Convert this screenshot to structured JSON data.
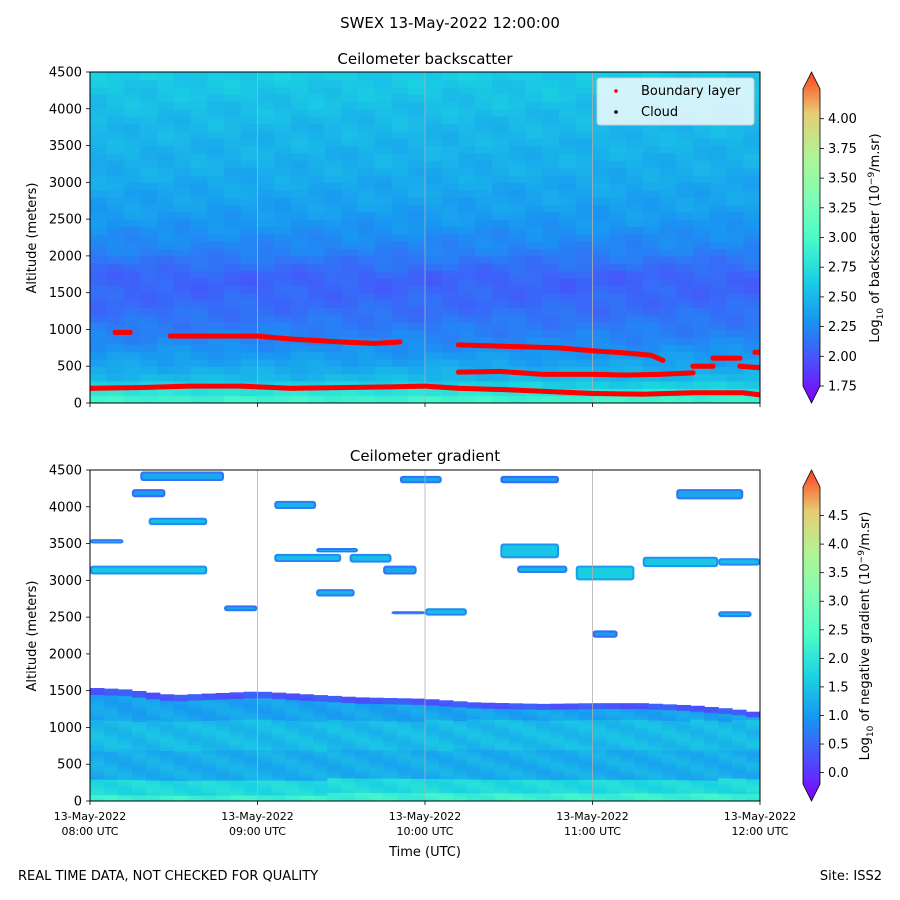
{
  "figure": {
    "suptitle": "SWEX 13-May-2022 12:00:00",
    "footer_left": "REAL TIME DATA, NOT CHECKED FOR QUALITY",
    "footer_right": "Site: ISS2",
    "xlabel": "Time (UTC)",
    "x_tick_labels": [
      [
        "13-May-2022",
        "08:00 UTC"
      ],
      [
        "13-May-2022",
        "09:00 UTC"
      ],
      [
        "13-May-2022",
        "10:00 UTC"
      ],
      [
        "13-May-2022",
        "11:00 UTC"
      ],
      [
        "13-May-2022",
        "12:00 UTC"
      ]
    ]
  },
  "colors": {
    "boundary_layer": "#ff0000",
    "cloud": "#000000",
    "gridline": "#b0b0b0"
  },
  "chart_data": [
    {
      "type": "heatmap",
      "title": "Ceilometer backscatter",
      "ylabel": "Altitude (meters)",
      "xlim_hours_utc": [
        8,
        12
      ],
      "ylim": [
        0,
        4500
      ],
      "y_ticks": [
        0,
        500,
        1000,
        1500,
        2000,
        2500,
        3000,
        3500,
        4000,
        4500
      ],
      "grid": "vertical",
      "legend": {
        "placement": "top-right",
        "entries": [
          {
            "label": "Boundary layer",
            "color": "#ff0000"
          },
          {
            "label": "Cloud",
            "color": "#000000"
          }
        ]
      },
      "colorbar": {
        "label_prefix": "Log",
        "label_sub": "10",
        "label_mid": " of backscatter (10",
        "label_sup": "−9",
        "label_suffix": "/m.sr)",
        "range": [
          1.75,
          4.25
        ],
        "ticks": [
          "1.75",
          "2.00",
          "2.25",
          "2.50",
          "2.75",
          "3.00",
          "3.25",
          "3.50",
          "3.75",
          "4.00"
        ],
        "tick_values": [
          1.75,
          2.0,
          2.25,
          2.5,
          2.75,
          3.0,
          3.25,
          3.5,
          3.75,
          4.0
        ],
        "extend": "both"
      },
      "profile": [
        {
          "alt": 0,
          "v": 2.95
        },
        {
          "alt": 100,
          "v": 2.9
        },
        {
          "alt": 200,
          "v": 2.72
        },
        {
          "alt": 350,
          "v": 2.55
        },
        {
          "alt": 600,
          "v": 2.42
        },
        {
          "alt": 900,
          "v": 2.3
        },
        {
          "alt": 1300,
          "v": 2.2
        },
        {
          "alt": 1700,
          "v": 2.15
        },
        {
          "alt": 2100,
          "v": 2.3
        },
        {
          "alt": 2600,
          "v": 2.42
        },
        {
          "alt": 3200,
          "v": 2.5
        },
        {
          "alt": 3800,
          "v": 2.55
        },
        {
          "alt": 4500,
          "v": 2.65
        }
      ],
      "series": [
        {
          "name": "Boundary layer",
          "segments": [
            {
              "points": [
                [
                  8.0,
                  200
                ],
                [
                  8.3,
                  210
                ],
                [
                  8.6,
                  230
                ],
                [
                  8.9,
                  230
                ],
                [
                  9.2,
                  200
                ],
                [
                  9.5,
                  210
                ],
                [
                  9.8,
                  220
                ],
                [
                  10.0,
                  230
                ],
                [
                  10.2,
                  200
                ],
                [
                  10.5,
                  180
                ],
                [
                  10.8,
                  150
                ],
                [
                  11.0,
                  130
                ],
                [
                  11.3,
                  120
                ],
                [
                  11.6,
                  140
                ],
                [
                  11.9,
                  140
                ],
                [
                  12.0,
                  110
                ]
              ]
            },
            {
              "points": [
                [
                  8.15,
                  960
                ],
                [
                  8.24,
                  960
                ]
              ]
            },
            {
              "points": [
                [
                  8.48,
                  910
                ],
                [
                  8.7,
                  910
                ],
                [
                  9.0,
                  910
                ],
                [
                  9.2,
                  870
                ],
                [
                  9.5,
                  830
                ],
                [
                  9.7,
                  810
                ],
                [
                  9.85,
                  830
                ]
              ]
            },
            {
              "points": [
                [
                  10.2,
                  790
                ],
                [
                  10.5,
                  770
                ],
                [
                  10.8,
                  750
                ],
                [
                  11.0,
                  710
                ],
                [
                  11.2,
                  680
                ],
                [
                  11.35,
                  650
                ],
                [
                  11.42,
                  580
                ]
              ]
            },
            {
              "points": [
                [
                  10.2,
                  420
                ],
                [
                  10.45,
                  430
                ],
                [
                  10.7,
                  390
                ],
                [
                  11.0,
                  390
                ],
                [
                  11.2,
                  380
                ],
                [
                  11.4,
                  390
                ],
                [
                  11.6,
                  410
                ]
              ]
            },
            {
              "points": [
                [
                  11.6,
                  500
                ],
                [
                  11.72,
                  500
                ]
              ]
            },
            {
              "points": [
                [
                  11.72,
                  610
                ],
                [
                  11.88,
                  610
                ]
              ]
            },
            {
              "points": [
                [
                  11.88,
                  500
                ],
                [
                  12.0,
                  480
                ]
              ]
            },
            {
              "points": [
                [
                  11.97,
                  690
                ],
                [
                  12.0,
                  690
                ]
              ]
            }
          ]
        }
      ]
    },
    {
      "type": "heatmap",
      "title": "Ceilometer gradient",
      "ylabel": "Altitude (meters)",
      "xlim_hours_utc": [
        8,
        12
      ],
      "ylim": [
        0,
        4500
      ],
      "y_ticks": [
        0,
        500,
        1000,
        1500,
        2000,
        2500,
        3000,
        3500,
        4000,
        4500
      ],
      "grid": "vertical",
      "colorbar": {
        "label_prefix": "Log",
        "label_sub": "10",
        "label_mid": " of negative gradient (10",
        "label_sup": "−9",
        "label_suffix": "/m.sr)",
        "range": [
          -0.2,
          5.0
        ],
        "ticks": [
          "0.0",
          "0.5",
          "1.0",
          "1.5",
          "2.0",
          "2.5",
          "3.0",
          "3.5",
          "4.0",
          "4.5"
        ],
        "tick_values": [
          0.0,
          0.5,
          1.0,
          1.5,
          2.0,
          2.5,
          3.0,
          3.5,
          4.0,
          4.5
        ],
        "extend": "both"
      },
      "boundary_layer_top": [
        [
          8.0,
          1540
        ],
        [
          8.2,
          1520
        ],
        [
          8.5,
          1440
        ],
        [
          8.8,
          1470
        ],
        [
          9.0,
          1490
        ],
        [
          9.3,
          1450
        ],
        [
          9.6,
          1410
        ],
        [
          10.0,
          1390
        ],
        [
          10.3,
          1340
        ],
        [
          10.7,
          1320
        ],
        [
          11.0,
          1330
        ],
        [
          11.3,
          1330
        ],
        [
          11.6,
          1300
        ],
        [
          11.85,
          1250
        ],
        [
          12.0,
          1200
        ]
      ],
      "cloud_patches": [
        {
          "t0": 8.3,
          "t1": 8.8,
          "a0": 4350,
          "a1": 4480,
          "v": 1.3
        },
        {
          "t0": 8.25,
          "t1": 8.45,
          "a0": 4130,
          "a1": 4240,
          "v": 1.2
        },
        {
          "t0": 9.1,
          "t1": 9.35,
          "a0": 3970,
          "a1": 4080,
          "v": 1.4
        },
        {
          "t0": 8.35,
          "t1": 8.7,
          "a0": 3750,
          "a1": 3850,
          "v": 1.5
        },
        {
          "t0": 9.85,
          "t1": 10.1,
          "a0": 4320,
          "a1": 4420,
          "v": 1.3
        },
        {
          "t0": 10.45,
          "t1": 10.8,
          "a0": 4320,
          "a1": 4420,
          "v": 1.2
        },
        {
          "t0": 11.5,
          "t1": 11.9,
          "a0": 4100,
          "a1": 4240,
          "v": 1.3
        },
        {
          "t0": 8.0,
          "t1": 8.2,
          "a0": 3500,
          "a1": 3560,
          "v": 1.4
        },
        {
          "t0": 8.0,
          "t1": 8.7,
          "a0": 3080,
          "a1": 3200,
          "v": 1.6
        },
        {
          "t0": 9.1,
          "t1": 9.5,
          "a0": 3250,
          "a1": 3360,
          "v": 1.5
        },
        {
          "t0": 9.35,
          "t1": 9.6,
          "a0": 3380,
          "a1": 3440,
          "v": 1.3
        },
        {
          "t0": 9.55,
          "t1": 9.8,
          "a0": 3240,
          "a1": 3360,
          "v": 1.5
        },
        {
          "t0": 9.75,
          "t1": 9.95,
          "a0": 3080,
          "a1": 3200,
          "v": 1.3
        },
        {
          "t0": 10.45,
          "t1": 10.8,
          "a0": 3300,
          "a1": 3500,
          "v": 1.6
        },
        {
          "t0": 10.55,
          "t1": 10.85,
          "a0": 3100,
          "a1": 3200,
          "v": 1.4
        },
        {
          "t0": 10.9,
          "t1": 11.25,
          "a0": 3000,
          "a1": 3200,
          "v": 1.7
        },
        {
          "t0": 11.3,
          "t1": 11.75,
          "a0": 3180,
          "a1": 3320,
          "v": 1.6
        },
        {
          "t0": 11.75,
          "t1": 12.0,
          "a0": 3200,
          "a1": 3300,
          "v": 1.5
        },
        {
          "t0": 9.35,
          "t1": 9.58,
          "a0": 2780,
          "a1": 2880,
          "v": 1.4
        },
        {
          "t0": 8.8,
          "t1": 9.0,
          "a0": 2580,
          "a1": 2660,
          "v": 1.3
        },
        {
          "t0": 9.8,
          "t1": 10.0,
          "a0": 2540,
          "a1": 2580,
          "v": 1.2
        },
        {
          "t0": 10.0,
          "t1": 10.25,
          "a0": 2520,
          "a1": 2620,
          "v": 1.5
        },
        {
          "t0": 11.75,
          "t1": 11.95,
          "a0": 2500,
          "a1": 2580,
          "v": 1.4
        },
        {
          "t0": 11.0,
          "t1": 11.15,
          "a0": 2220,
          "a1": 2320,
          "v": 1.2
        }
      ]
    }
  ]
}
